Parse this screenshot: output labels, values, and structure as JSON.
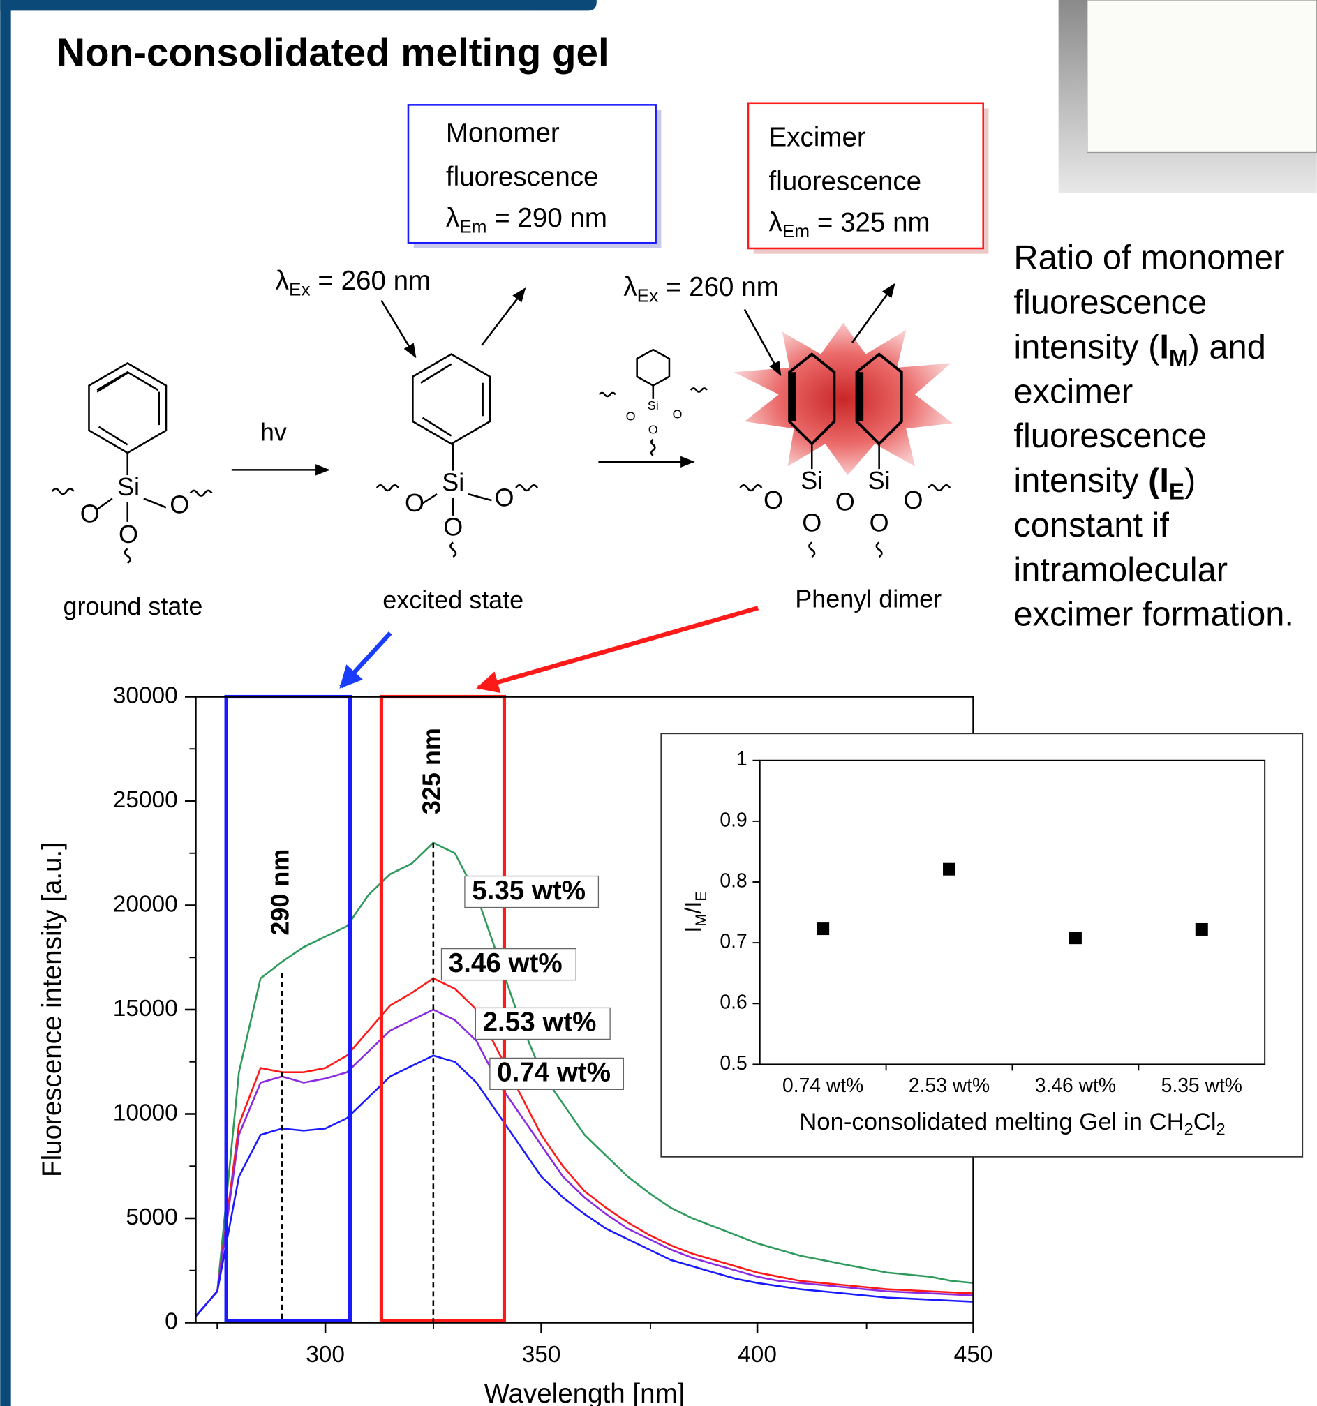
{
  "title": "Non-consolidated  melting gel",
  "diagram": {
    "monomer_box": {
      "lines": [
        "Monomer",
        "fluorescence"
      ],
      "lambda": [
        {
          "text": "λ"
        },
        {
          "text": "Em",
          "style": "sub"
        },
        {
          "text": " = 290 nm"
        }
      ]
    },
    "excimer_box": {
      "lines": [
        "Excimer",
        "fluorescence"
      ],
      "lambda": [
        {
          "text": "λ"
        },
        {
          "text": "Em",
          "style": "sub"
        },
        {
          "text": " = 325 nm"
        }
      ]
    },
    "excitation_1": [
      {
        "text": "λ"
      },
      {
        "text": "Ex",
        "style": "sub"
      },
      {
        "text": " = 260 nm"
      }
    ],
    "excitation_2": [
      {
        "text": "λ"
      },
      {
        "text": "Ex",
        "style": "sub"
      },
      {
        "text": " = 260 nm"
      }
    ],
    "hv": "hv",
    "silicon": "Si",
    "oxygen": "O",
    "ground_state": "ground state",
    "excited_state": "excited state",
    "phenyl_dimer": "Phenyl dimer"
  },
  "side_text": [
    [
      {
        "text": "Ratio of monomer"
      }
    ],
    [
      {
        "text": "fluorescence"
      }
    ],
    [
      {
        "text": "intensity ("
      },
      {
        "text": "I",
        "style": "bold"
      },
      {
        "text": "M",
        "style": "bold sub"
      },
      {
        "text": ") and"
      }
    ],
    [
      {
        "text": "excimer"
      }
    ],
    [
      {
        "text": "fluorescence"
      }
    ],
    [
      {
        "text": "intensity "
      },
      {
        "text": "(I",
        "style": "bold"
      },
      {
        "text": "E",
        "style": "bold sub"
      },
      {
        "text": ")"
      }
    ],
    [
      {
        "text": "constant if"
      }
    ],
    [
      {
        "text": "intramolecular"
      }
    ],
    [
      {
        "text": "excimer formation."
      }
    ]
  ],
  "chart_data": [
    {
      "type": "line",
      "xlabel": "Wavelength [nm]",
      "ylabel": "Fluorescence intensity [a.u.]",
      "x": [
        270,
        275,
        280,
        285,
        290,
        295,
        300,
        305,
        310,
        315,
        320,
        325,
        330,
        335,
        340,
        345,
        350,
        355,
        360,
        365,
        370,
        375,
        380,
        385,
        390,
        395,
        400,
        405,
        410,
        415,
        420,
        425,
        430,
        435,
        440,
        445,
        450
      ],
      "series": [
        {
          "name": "5.35 wt%",
          "color": "#2e9a5c",
          "values": [
            300,
            1500,
            12000,
            16500,
            17300,
            18000,
            18500,
            19000,
            20500,
            21500,
            22000,
            23000,
            22500,
            20500,
            17500,
            14500,
            12000,
            10500,
            9000,
            8000,
            7000,
            6200,
            5500,
            5000,
            4600,
            4200,
            3800,
            3500,
            3200,
            3000,
            2800,
            2600,
            2400,
            2300,
            2200,
            2000,
            1900
          ]
        },
        {
          "name": "3.46 wt%",
          "color": "#ff1a1a",
          "values": [
            300,
            1500,
            9500,
            12200,
            12000,
            12000,
            12200,
            12800,
            14000,
            15200,
            15800,
            16500,
            16000,
            15000,
            13000,
            11000,
            9000,
            7500,
            6300,
            5500,
            4800,
            4200,
            3700,
            3300,
            3000,
            2700,
            2400,
            2200,
            2000,
            1900,
            1800,
            1700,
            1600,
            1550,
            1500,
            1450,
            1400
          ]
        },
        {
          "name": "2.53 wt%",
          "color": "#8a2be2",
          "values": [
            300,
            1500,
            9000,
            11500,
            11800,
            11500,
            11700,
            12000,
            13000,
            14000,
            14500,
            15000,
            14500,
            13500,
            11500,
            10000,
            8500,
            7000,
            6000,
            5200,
            4500,
            4000,
            3500,
            3100,
            2800,
            2500,
            2200,
            2000,
            1900,
            1800,
            1700,
            1600,
            1500,
            1450,
            1400,
            1350,
            1300
          ]
        },
        {
          "name": "0.74 wt%",
          "color": "#1a1aff",
          "values": [
            300,
            1500,
            7000,
            9000,
            9300,
            9200,
            9300,
            9800,
            10800,
            11800,
            12300,
            12800,
            12500,
            11500,
            10000,
            8500,
            7000,
            6000,
            5200,
            4500,
            4000,
            3500,
            3000,
            2700,
            2400,
            2100,
            1900,
            1750,
            1600,
            1500,
            1400,
            1300,
            1200,
            1150,
            1100,
            1050,
            1000
          ]
        }
      ],
      "xlim": [
        270,
        450
      ],
      "ylim": [
        0,
        30000
      ],
      "xticks": [
        300,
        350,
        400,
        450
      ],
      "yticks": [
        0,
        5000,
        10000,
        15000,
        20000,
        25000,
        30000
      ],
      "annotations": [
        {
          "text": "290 nm",
          "x": 290
        },
        {
          "text": "325 nm",
          "x": 325
        }
      ]
    },
    {
      "type": "scatter",
      "xlabel": [
        {
          "text": "Non-consolidated melting Gel in CH"
        },
        {
          "text": "2",
          "style": "sub"
        },
        {
          "text": "Cl"
        },
        {
          "text": "2",
          "style": "sub"
        }
      ],
      "ylabel": [
        {
          "text": "I"
        },
        {
          "text": "M",
          "style": "sub"
        },
        {
          "text": "/I"
        },
        {
          "text": "E",
          "style": "sub"
        }
      ],
      "categories": [
        "0.74 wt%",
        "2.53 wt%",
        "3.46 wt%",
        "5.35 wt%"
      ],
      "values": [
        0.723,
        0.821,
        0.708,
        0.722
      ],
      "color": "#000000",
      "ylim": [
        0.5,
        1
      ],
      "yticks": [
        0.5,
        0.6,
        0.7,
        0.8,
        0.9,
        1
      ]
    }
  ]
}
